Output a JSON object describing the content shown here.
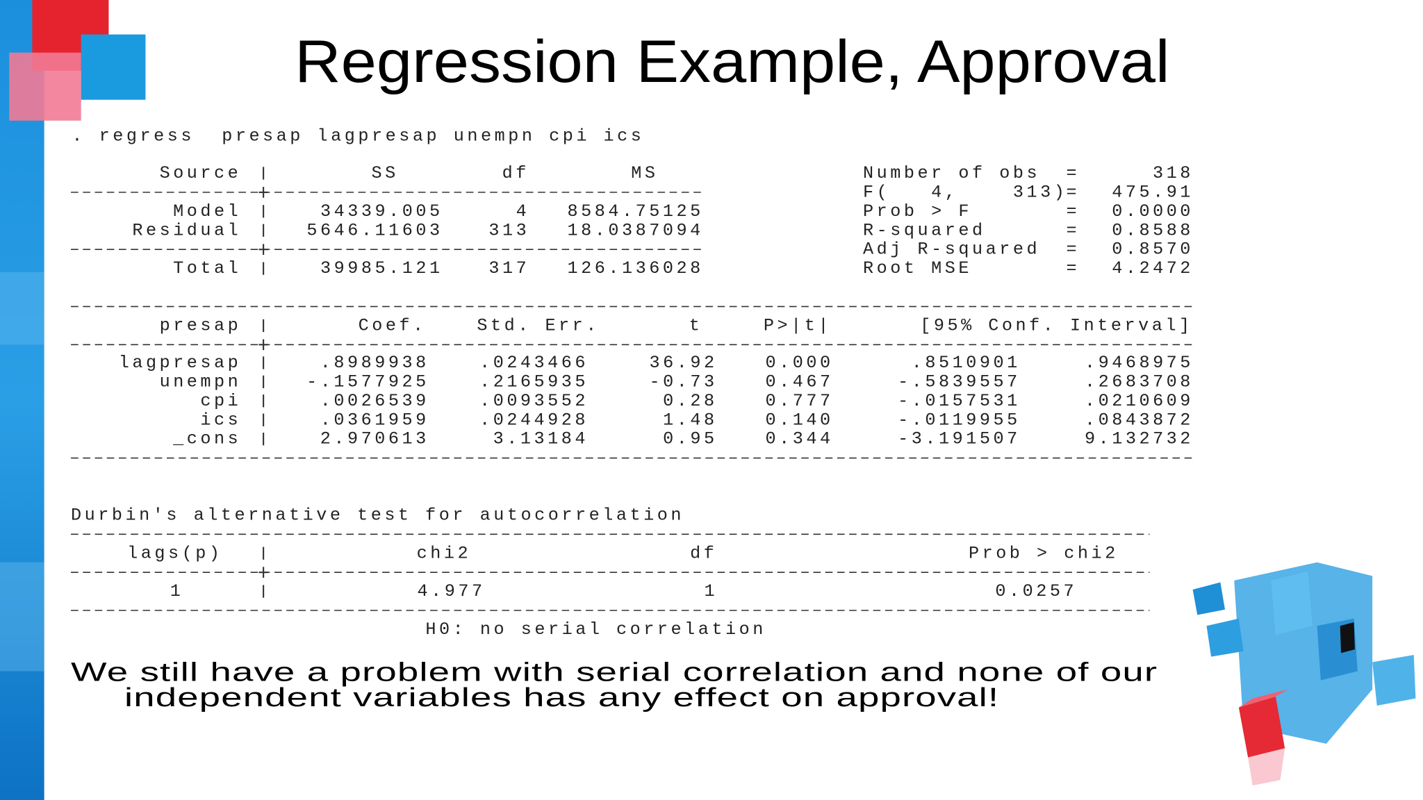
{
  "title": "Regression Example, Approval",
  "command": ". regress  presap lagpresap unempn cpi ics",
  "equals": "=",
  "anova": {
    "headers": [
      "Source",
      "SS",
      "df",
      "MS"
    ],
    "rows": [
      [
        "Model",
        "34339.005",
        "4",
        "8584.75125"
      ],
      [
        "Residual",
        "5646.11603",
        "313",
        "18.0387094"
      ],
      [
        "Total",
        "39985.121",
        "317",
        "126.136028"
      ]
    ]
  },
  "fit_stats": [
    [
      "Number of obs",
      "318"
    ],
    [
      "F(   4,    313)",
      "475.91"
    ],
    [
      "Prob > F",
      "0.0000"
    ],
    [
      "R-squared",
      "0.8588"
    ],
    [
      "Adj R-squared",
      "0.8570"
    ],
    [
      "Root MSE",
      "4.2472"
    ]
  ],
  "coefficients": {
    "headers": [
      "presap",
      "Coef.",
      "Std. Err.",
      "t",
      "P>|t|",
      "[95% Conf. Interval]"
    ],
    "rows": [
      [
        "lagpresap",
        ".8989938",
        ".0243466",
        "36.92",
        "0.000",
        ".8510901",
        ".9468975"
      ],
      [
        "unempn",
        "-.1577925",
        ".2165935",
        "-0.73",
        "0.467",
        "-.5839557",
        ".2683708"
      ],
      [
        "cpi",
        ".0026539",
        ".0093552",
        "0.28",
        "0.777",
        "-.0157531",
        ".0210609"
      ],
      [
        "ics",
        ".0361959",
        ".0244928",
        "1.48",
        "0.140",
        "-.0119955",
        ".0843872"
      ],
      [
        "_cons",
        "2.970613",
        "3.13184",
        "0.95",
        "0.344",
        "-3.191507",
        "9.132732"
      ]
    ]
  },
  "durbin": {
    "title": "Durbin's alternative test for autocorrelation",
    "headers": [
      "lags(p)",
      "chi2",
      "df",
      "Prob > chi2"
    ],
    "rows": [
      [
        "1",
        "4.977",
        "1",
        "0.0257"
      ]
    ],
    "note": "H0: no serial correlation"
  },
  "conclusion": [
    "We still have a problem with serial correlation and none of our",
    "independent variables has any effect on approval!"
  ]
}
